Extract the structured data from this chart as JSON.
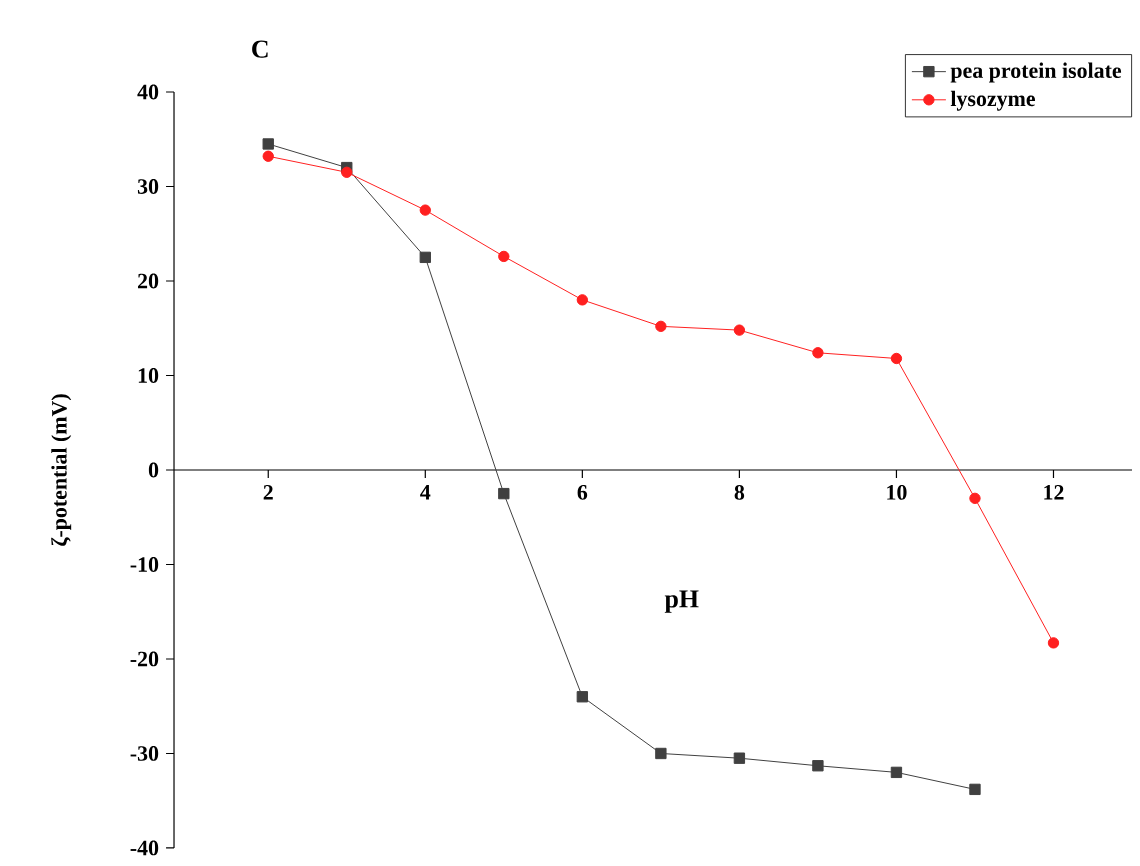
{
  "chart_data": {
    "type": "line",
    "title": "C",
    "xlabel": "pH",
    "ylabel": "ζ-potential (mV)",
    "x": [
      2,
      3,
      4,
      5,
      6,
      7,
      8,
      9,
      10,
      11,
      12
    ],
    "series": [
      {
        "name": "pea protein isolate",
        "color": "#404040",
        "marker": "square",
        "values": [
          34.5,
          32,
          22.5,
          -2.5,
          -24,
          -30,
          -30.5,
          -31.3,
          -32,
          -33.8,
          null
        ]
      },
      {
        "name": "lysozyme",
        "color": "#ff2020",
        "marker": "circle",
        "values": [
          33.2,
          31.5,
          27.5,
          22.6,
          18,
          15.2,
          14.8,
          12.4,
          11.8,
          -3,
          -18.3
        ]
      }
    ],
    "xlim": [
      0.8,
      13
    ],
    "ylim": [
      -40,
      40
    ],
    "xticks": [
      2,
      4,
      6,
      8,
      10,
      12
    ],
    "yticks": [
      -40,
      -30,
      -20,
      -10,
      0,
      10,
      20,
      30,
      40
    ],
    "legend": "top right",
    "grid": false,
    "line_style": "solid"
  }
}
